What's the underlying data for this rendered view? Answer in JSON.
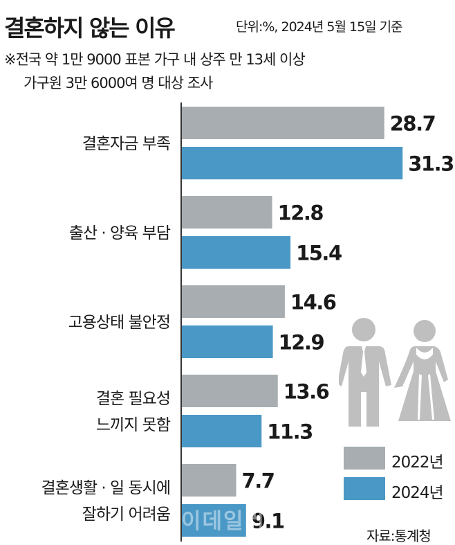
{
  "header": {
    "title": "결혼하지 않는 이유",
    "unit": "단위:%, 2024년 5월 15일 기준",
    "note_line1": "※전국 약 1만 9000 표본 가구 내 상주 만 13세 이상",
    "note_line2": "가구원 3만 6000여 명 대상 조사"
  },
  "chart_data": {
    "type": "bar",
    "orientation": "horizontal",
    "categories": [
      [
        "결혼자금 부족"
      ],
      [
        "출산 · 양육 부담"
      ],
      [
        "고용상태 불안정"
      ],
      [
        "결혼  필요성",
        "느끼지 못함"
      ],
      [
        "결혼생활 · 일 동시에",
        "잘하기 어려움"
      ]
    ],
    "series": [
      {
        "name": "2022년",
        "values": [
          28.7,
          12.8,
          14.6,
          13.6,
          7.7
        ],
        "color": "#a7adb1"
      },
      {
        "name": "2024년",
        "values": [
          31.3,
          15.4,
          12.9,
          11.3,
          9.1
        ],
        "color": "#4a98c6"
      }
    ],
    "value_labels": [
      [
        "28.7",
        "31.3"
      ],
      [
        "12.8",
        "15.4"
      ],
      [
        "14.6",
        "12.9"
      ],
      [
        "13.6",
        "11.3"
      ],
      [
        "7.7",
        "9.1"
      ]
    ],
    "legend_position": "bottom-right",
    "grid": false
  },
  "legend": [
    {
      "label": "2022년",
      "color": "#a7adb1"
    },
    {
      "label": "2024년",
      "color": "#4a98c6"
    }
  ],
  "source": "자료:통계청",
  "watermark": "이데일리",
  "colors": {
    "axis": "#333333",
    "icon": "#bfbfbf"
  }
}
